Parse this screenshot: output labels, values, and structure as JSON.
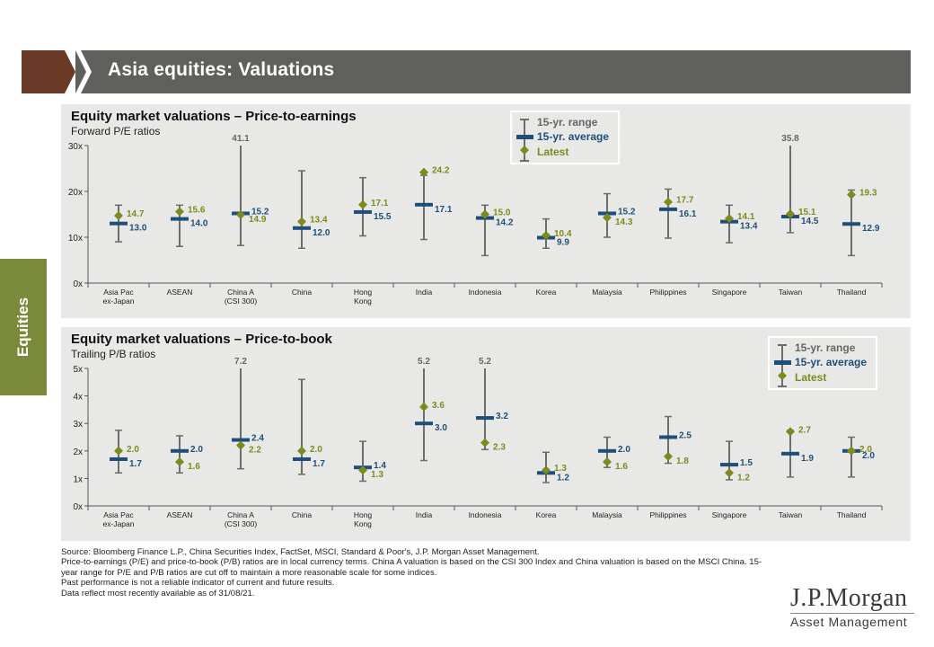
{
  "header": {
    "title": "Asia equities: Valuations"
  },
  "side_tab": {
    "label": "Equities"
  },
  "colors": {
    "brown": "#6b3a26",
    "header_grey": "#5f605b",
    "green_tab": "#7a8a3a",
    "panel_bg": "#e8e8e6",
    "range": "#6b6e6a",
    "average": "#1f4e79",
    "latest": "#7d8a1f"
  },
  "legend": {
    "range": "15-yr. range",
    "average": "15-yr. average",
    "latest": "Latest"
  },
  "pe": {
    "title": "Equity market valuations – Price-to-earnings",
    "subtitle": "Forward P/E ratios"
  },
  "pb": {
    "title": "Equity market valuations – Price-to-book",
    "subtitle": "Trailing P/B ratios"
  },
  "chart_data": [
    {
      "type": "range",
      "title": "Equity market valuations – Price-to-earnings",
      "subtitle": "Forward P/E ratios",
      "ylim": [
        0,
        30
      ],
      "yticks": [
        "0x",
        "10x",
        "20x",
        "30x"
      ],
      "categories": [
        "Asia Pac ex-Japan",
        "ASEAN",
        "China A (CSI 300)",
        "China",
        "Hong Kong",
        "India",
        "Indonesia",
        "Korea",
        "Malaysia",
        "Philippines",
        "Singapore",
        "Taiwan",
        "Thailand"
      ],
      "category_lines": [
        [
          "Asia Pac",
          "ex-Japan"
        ],
        [
          "ASEAN"
        ],
        [
          "China A",
          "(CSI 300)"
        ],
        [
          "China"
        ],
        [
          "Hong",
          "Kong"
        ],
        [
          "India"
        ],
        [
          "Indonesia"
        ],
        [
          "Korea"
        ],
        [
          "Malaysia"
        ],
        [
          "Philippines"
        ],
        [
          "Singapore"
        ],
        [
          "Taiwan"
        ],
        [
          "Thailand"
        ]
      ],
      "range_low": [
        9.0,
        8.0,
        8.2,
        7.6,
        10.3,
        9.5,
        6.0,
        7.6,
        10.0,
        9.8,
        8.8,
        11.0,
        6.0
      ],
      "range_high": [
        17.0,
        17.0,
        30.0,
        24.5,
        23.0,
        23.5,
        17.0,
        14.0,
        19.5,
        20.5,
        17.0,
        30.0,
        20.3
      ],
      "capped_max_labels": [
        "",
        "",
        "41.1",
        "",
        "",
        "",
        "",
        "",
        "",
        "",
        "",
        "35.8",
        ""
      ],
      "average": [
        13.0,
        14.0,
        15.2,
        12.0,
        15.5,
        17.1,
        14.2,
        9.9,
        15.2,
        16.1,
        13.4,
        14.5,
        12.9
      ],
      "latest": [
        14.7,
        15.6,
        14.9,
        13.4,
        17.1,
        24.2,
        15.0,
        10.4,
        14.3,
        17.7,
        14.1,
        15.1,
        19.3
      ],
      "average_labels": [
        "13.0",
        "14.0",
        "15.2",
        "12.0",
        "15.5",
        "17.1",
        "14.2",
        "9.9",
        "15.2",
        "16.1",
        "13.4",
        "14.5",
        "12.9"
      ],
      "latest_labels": [
        "14.7",
        "15.6",
        "14.9",
        "13.4",
        "17.1",
        "24.2",
        "15.0",
        "10.4",
        "14.3",
        "17.7",
        "14.1",
        "15.1",
        "19.3"
      ]
    },
    {
      "type": "range",
      "title": "Equity market valuations – Price-to-book",
      "subtitle": "Trailing P/B ratios",
      "ylim": [
        0,
        5
      ],
      "yticks": [
        "0x",
        "1x",
        "2x",
        "3x",
        "4x",
        "5x"
      ],
      "categories": [
        "Asia Pac ex-Japan",
        "ASEAN",
        "China A (CSI 300)",
        "China",
        "Hong Kong",
        "India",
        "Indonesia",
        "Korea",
        "Malaysia",
        "Philippines",
        "Singapore",
        "Taiwan",
        "Thailand"
      ],
      "category_lines": [
        [
          "Asia Pac",
          "ex-Japan"
        ],
        [
          "ASEAN"
        ],
        [
          "China A",
          "(CSI 300)"
        ],
        [
          "China"
        ],
        [
          "Hong",
          "Kong"
        ],
        [
          "India"
        ],
        [
          "Indonesia"
        ],
        [
          "Korea"
        ],
        [
          "Malaysia"
        ],
        [
          "Philippines"
        ],
        [
          "Singapore"
        ],
        [
          "Taiwan"
        ],
        [
          "Thailand"
        ]
      ],
      "range_low": [
        1.2,
        1.2,
        1.35,
        1.15,
        0.9,
        1.65,
        2.05,
        0.85,
        1.4,
        1.55,
        0.95,
        1.05,
        1.05
      ],
      "range_high": [
        2.75,
        2.55,
        5.0,
        4.6,
        2.35,
        5.0,
        5.0,
        1.95,
        2.5,
        3.25,
        2.35,
        2.75,
        2.5
      ],
      "capped_max_labels": [
        "",
        "",
        "7.2",
        "",
        "",
        "5.2",
        "5.2",
        "",
        "",
        "",
        "",
        "",
        ""
      ],
      "average": [
        1.7,
        2.0,
        2.4,
        1.7,
        1.4,
        3.0,
        3.2,
        1.2,
        2.0,
        2.5,
        1.5,
        1.9,
        2.0
      ],
      "latest": [
        2.0,
        1.6,
        2.2,
        2.0,
        1.3,
        3.6,
        2.3,
        1.3,
        1.6,
        1.8,
        1.2,
        2.7,
        2.0
      ],
      "average_labels": [
        "1.7",
        "2.0",
        "2.4",
        "1.7",
        "1.4",
        "3.0",
        "3.2",
        "1.2",
        "2.0",
        "2.5",
        "1.5",
        "1.9",
        "2.0"
      ],
      "latest_labels": [
        "2.0",
        "1.6",
        "2.2",
        "2.0",
        "1.3",
        "3.6",
        "2.3",
        "1.3",
        "1.6",
        "1.8",
        "1.2",
        "2.7",
        "2.0"
      ]
    }
  ],
  "footnotes": [
    "Source: Bloomberg Finance L.P., China Securities Index, FactSet, MSCI,  Standard & Poor's, J.P. Morgan Asset Management.",
    "Price-to-earnings (P/E) and price-to-book (P/B) ratios are in local currency terms. China A valuation is based on the CSI 300 Index and China valuation is based on the MSCI China. 15-year range for P/E and P/B ratios are cut off to maintain a more reasonable scale for some indices.",
    "Past performance is not a reliable indicator of current and future results.",
    "Data reflect most recently available as of 31/08/21."
  ],
  "logo": {
    "name": "J.P.Morgan",
    "sub": "Asset Management"
  }
}
